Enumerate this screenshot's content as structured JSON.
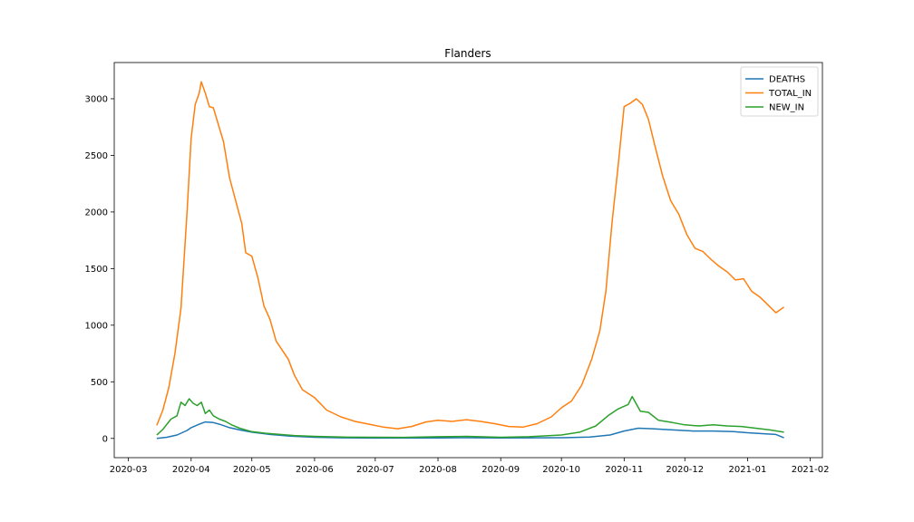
{
  "chart_data": {
    "type": "line",
    "title": "Flanders",
    "xlabel": "",
    "ylabel": "",
    "x_ticks": [
      "2020-03",
      "2020-04",
      "2020-05",
      "2020-06",
      "2020-07",
      "2020-08",
      "2020-09",
      "2020-10",
      "2020-11",
      "2020-12",
      "2021-01",
      "2021-02"
    ],
    "x_tick_values": [
      "2020-03-01",
      "2020-04-01",
      "2020-05-01",
      "2020-06-01",
      "2020-07-01",
      "2020-08-01",
      "2020-09-01",
      "2020-10-01",
      "2020-11-01",
      "2020-12-01",
      "2021-01-01",
      "2021-02-01"
    ],
    "y_ticks": [
      0,
      500,
      1000,
      1500,
      2000,
      2500,
      3000
    ],
    "xlim": [
      "2020-02-23",
      "2021-02-07"
    ],
    "ylim": [
      -170,
      3320
    ],
    "grid": false,
    "legend_position": "top-right",
    "series": [
      {
        "name": "DEATHS",
        "color": "#1f77b4",
        "points": [
          [
            "2020-03-15",
            0
          ],
          [
            "2020-03-20",
            10
          ],
          [
            "2020-03-25",
            30
          ],
          [
            "2020-03-30",
            70
          ],
          [
            "2020-04-01",
            95
          ],
          [
            "2020-04-05",
            125
          ],
          [
            "2020-04-08",
            145
          ],
          [
            "2020-04-12",
            140
          ],
          [
            "2020-04-15",
            125
          ],
          [
            "2020-04-20",
            95
          ],
          [
            "2020-04-25",
            75
          ],
          [
            "2020-05-01",
            55
          ],
          [
            "2020-05-10",
            35
          ],
          [
            "2020-05-20",
            20
          ],
          [
            "2020-06-01",
            10
          ],
          [
            "2020-06-15",
            5
          ],
          [
            "2020-07-01",
            3
          ],
          [
            "2020-08-01",
            4
          ],
          [
            "2020-08-15",
            6
          ],
          [
            "2020-09-01",
            4
          ],
          [
            "2020-10-01",
            6
          ],
          [
            "2020-10-15",
            12
          ],
          [
            "2020-10-25",
            30
          ],
          [
            "2020-11-01",
            65
          ],
          [
            "2020-11-08",
            90
          ],
          [
            "2020-11-15",
            85
          ],
          [
            "2020-11-25",
            75
          ],
          [
            "2020-12-05",
            65
          ],
          [
            "2020-12-15",
            65
          ],
          [
            "2020-12-25",
            60
          ],
          [
            "2021-01-01",
            50
          ],
          [
            "2021-01-10",
            40
          ],
          [
            "2021-01-15",
            35
          ],
          [
            "2021-01-19",
            5
          ]
        ]
      },
      {
        "name": "TOTAL_IN",
        "color": "#ff7f0e",
        "points": [
          [
            "2020-03-15",
            115
          ],
          [
            "2020-03-18",
            250
          ],
          [
            "2020-03-21",
            450
          ],
          [
            "2020-03-24",
            750
          ],
          [
            "2020-03-27",
            1150
          ],
          [
            "2020-03-30",
            2000
          ],
          [
            "2020-04-01",
            2650
          ],
          [
            "2020-04-03",
            2950
          ],
          [
            "2020-04-05",
            3050
          ],
          [
            "2020-04-06",
            3150
          ],
          [
            "2020-04-08",
            3050
          ],
          [
            "2020-04-10",
            2930
          ],
          [
            "2020-04-12",
            2920
          ],
          [
            "2020-04-14",
            2800
          ],
          [
            "2020-04-17",
            2620
          ],
          [
            "2020-04-20",
            2300
          ],
          [
            "2020-04-23",
            2100
          ],
          [
            "2020-04-26",
            1900
          ],
          [
            "2020-04-28",
            1640
          ],
          [
            "2020-05-01",
            1610
          ],
          [
            "2020-05-04",
            1420
          ],
          [
            "2020-05-07",
            1170
          ],
          [
            "2020-05-10",
            1050
          ],
          [
            "2020-05-13",
            860
          ],
          [
            "2020-05-16",
            780
          ],
          [
            "2020-05-19",
            700
          ],
          [
            "2020-05-22",
            560
          ],
          [
            "2020-05-26",
            430
          ],
          [
            "2020-06-01",
            360
          ],
          [
            "2020-06-07",
            250
          ],
          [
            "2020-06-14",
            190
          ],
          [
            "2020-06-21",
            150
          ],
          [
            "2020-06-28",
            125
          ],
          [
            "2020-07-05",
            100
          ],
          [
            "2020-07-12",
            85
          ],
          [
            "2020-07-19",
            105
          ],
          [
            "2020-07-26",
            145
          ],
          [
            "2020-08-01",
            160
          ],
          [
            "2020-08-08",
            150
          ],
          [
            "2020-08-15",
            165
          ],
          [
            "2020-08-22",
            150
          ],
          [
            "2020-08-29",
            130
          ],
          [
            "2020-09-05",
            105
          ],
          [
            "2020-09-12",
            100
          ],
          [
            "2020-09-19",
            130
          ],
          [
            "2020-09-26",
            190
          ],
          [
            "2020-10-01",
            270
          ],
          [
            "2020-10-06",
            330
          ],
          [
            "2020-10-11",
            470
          ],
          [
            "2020-10-16",
            700
          ],
          [
            "2020-10-20",
            950
          ],
          [
            "2020-10-23",
            1300
          ],
          [
            "2020-10-26",
            1900
          ],
          [
            "2020-10-29",
            2400
          ],
          [
            "2020-11-01",
            2930
          ],
          [
            "2020-11-04",
            2960
          ],
          [
            "2020-11-07",
            3000
          ],
          [
            "2020-11-10",
            2950
          ],
          [
            "2020-11-13",
            2820
          ],
          [
            "2020-11-16",
            2600
          ],
          [
            "2020-11-20",
            2320
          ],
          [
            "2020-11-24",
            2100
          ],
          [
            "2020-11-28",
            1980
          ],
          [
            "2020-12-02",
            1800
          ],
          [
            "2020-12-06",
            1680
          ],
          [
            "2020-12-10",
            1650
          ],
          [
            "2020-12-14",
            1580
          ],
          [
            "2020-12-18",
            1520
          ],
          [
            "2020-12-22",
            1470
          ],
          [
            "2020-12-26",
            1400
          ],
          [
            "2020-12-30",
            1410
          ],
          [
            "2021-01-03",
            1300
          ],
          [
            "2021-01-07",
            1250
          ],
          [
            "2021-01-11",
            1180
          ],
          [
            "2021-01-15",
            1110
          ],
          [
            "2021-01-19",
            1160
          ]
        ]
      },
      {
        "name": "NEW_IN",
        "color": "#2ca02c",
        "points": [
          [
            "2020-03-15",
            30
          ],
          [
            "2020-03-18",
            80
          ],
          [
            "2020-03-22",
            170
          ],
          [
            "2020-03-25",
            200
          ],
          [
            "2020-03-27",
            320
          ],
          [
            "2020-03-29",
            290
          ],
          [
            "2020-03-31",
            350
          ],
          [
            "2020-04-02",
            310
          ],
          [
            "2020-04-04",
            290
          ],
          [
            "2020-04-06",
            320
          ],
          [
            "2020-04-08",
            220
          ],
          [
            "2020-04-10",
            250
          ],
          [
            "2020-04-12",
            200
          ],
          [
            "2020-04-15",
            170
          ],
          [
            "2020-04-18",
            150
          ],
          [
            "2020-04-21",
            120
          ],
          [
            "2020-04-25",
            90
          ],
          [
            "2020-05-01",
            60
          ],
          [
            "2020-05-08",
            45
          ],
          [
            "2020-05-15",
            35
          ],
          [
            "2020-05-22",
            25
          ],
          [
            "2020-06-01",
            18
          ],
          [
            "2020-06-15",
            12
          ],
          [
            "2020-07-01",
            10
          ],
          [
            "2020-07-15",
            9
          ],
          [
            "2020-08-01",
            15
          ],
          [
            "2020-08-15",
            18
          ],
          [
            "2020-09-01",
            10
          ],
          [
            "2020-09-15",
            15
          ],
          [
            "2020-10-01",
            30
          ],
          [
            "2020-10-10",
            55
          ],
          [
            "2020-10-18",
            110
          ],
          [
            "2020-10-24",
            200
          ],
          [
            "2020-10-29",
            260
          ],
          [
            "2020-11-03",
            300
          ],
          [
            "2020-11-05",
            370
          ],
          [
            "2020-11-09",
            240
          ],
          [
            "2020-11-13",
            230
          ],
          [
            "2020-11-18",
            160
          ],
          [
            "2020-11-25",
            140
          ],
          [
            "2020-12-01",
            120
          ],
          [
            "2020-12-08",
            110
          ],
          [
            "2020-12-15",
            120
          ],
          [
            "2020-12-22",
            110
          ],
          [
            "2020-12-29",
            105
          ],
          [
            "2021-01-05",
            90
          ],
          [
            "2021-01-12",
            75
          ],
          [
            "2021-01-19",
            55
          ]
        ]
      }
    ]
  }
}
